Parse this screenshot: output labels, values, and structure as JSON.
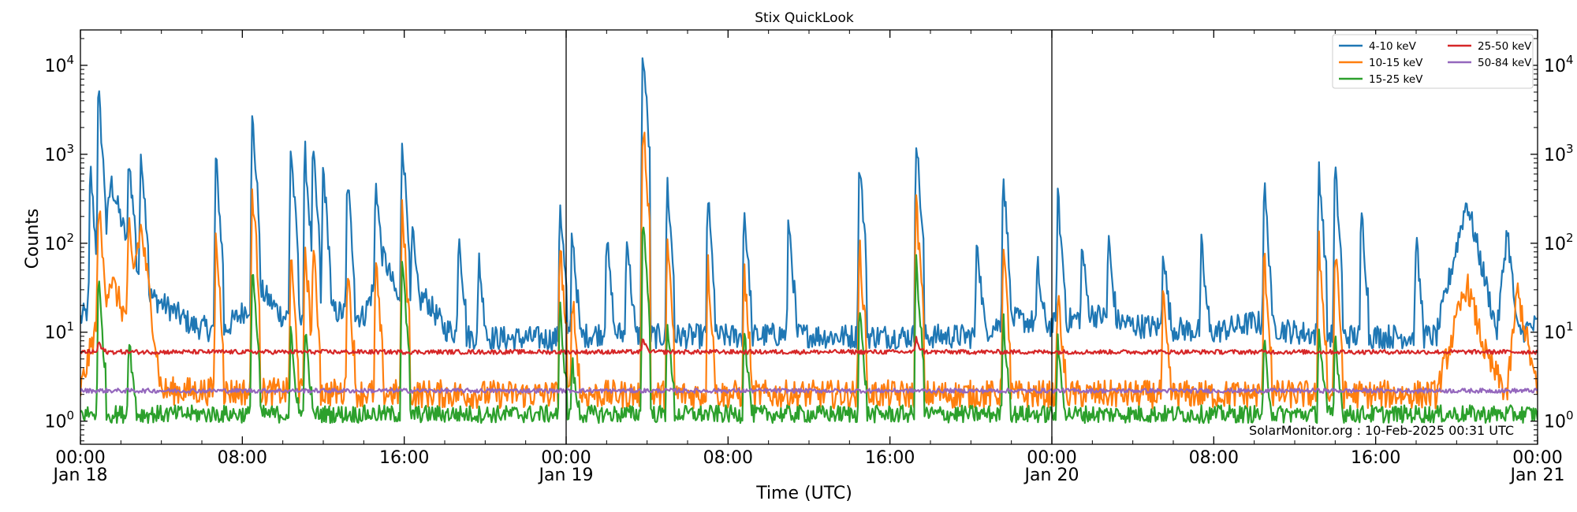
{
  "chart_data": {
    "type": "line",
    "title": "Stix QuickLook",
    "xlabel": "Time (UTC)",
    "ylabel": "Counts",
    "yscale": "log",
    "ylim": [
      0.55,
      25000
    ],
    "xlim_hours": [
      0,
      72
    ],
    "y_ticks": [
      {
        "value": 1,
        "exp": "0"
      },
      {
        "value": 10,
        "exp": "1"
      },
      {
        "value": 100,
        "exp": "2"
      },
      {
        "value": 1000,
        "exp": "3"
      },
      {
        "value": 10000,
        "exp": "4"
      }
    ],
    "x_ticks": [
      {
        "hour": 0,
        "time": "00:00",
        "date": "Jan 18"
      },
      {
        "hour": 8,
        "time": "08:00",
        "date": ""
      },
      {
        "hour": 16,
        "time": "16:00",
        "date": ""
      },
      {
        "hour": 24,
        "time": "00:00",
        "date": "Jan 19"
      },
      {
        "hour": 32,
        "time": "08:00",
        "date": ""
      },
      {
        "hour": 40,
        "time": "16:00",
        "date": ""
      },
      {
        "hour": 48,
        "time": "00:00",
        "date": "Jan 20"
      },
      {
        "hour": 56,
        "time": "08:00",
        "date": ""
      },
      {
        "hour": 64,
        "time": "16:00",
        "date": ""
      },
      {
        "hour": 72,
        "time": "00:00",
        "date": "Jan 21"
      }
    ],
    "day_boundaries_hours": [
      24,
      48
    ],
    "annotation": "SolarMonitor.org : 10-Feb-2025 00:31 UTC",
    "grid": false,
    "legend_position": "top-right",
    "legend_columns": 2,
    "series": [
      {
        "name": "4-10 keV",
        "color": "#1f77b4",
        "baseline_hours": [
          0,
          1,
          1.5,
          2.5,
          3.5,
          4.5,
          5.5,
          7,
          9,
          10,
          12,
          14,
          15,
          16,
          17,
          18,
          19,
          21,
          23,
          24,
          26,
          28,
          31,
          33,
          35,
          37,
          40,
          42,
          44,
          46,
          48,
          50,
          52,
          54,
          56,
          58,
          60,
          62,
          64,
          66,
          67,
          68.5,
          70,
          70.5,
          71,
          72
        ],
        "baseline_values": [
          14,
          25,
          500,
          70,
          25,
          18,
          12,
          10,
          28,
          15,
          18,
          15,
          70,
          14,
          25,
          11,
          9,
          8.5,
          8.5,
          8.5,
          10,
          9,
          9,
          9,
          9.5,
          9,
          9,
          9,
          9,
          14,
          12,
          16,
          12,
          11,
          10,
          13,
          10,
          9,
          9,
          9,
          9,
          300,
          10,
          150,
          10,
          12
        ],
        "peaks_hours": [
          0.5,
          0.9,
          2.4,
          3.0,
          6.7,
          8.5,
          10.4,
          11.1,
          11.5,
          12.0,
          13.2,
          14.6,
          15.9,
          16.4,
          18.7,
          19.7,
          23.7,
          24.3,
          26.0,
          27.0,
          27.8,
          29.0,
          31.0,
          32.8,
          35.0,
          38.5,
          41.3,
          44.3,
          45.6,
          47.3,
          48.3,
          49.5,
          50.8,
          53.5,
          55.4,
          58.5,
          61.2,
          62.0,
          63.3,
          66.0
        ],
        "peaks_values": [
          700,
          5000,
          1000,
          1200,
          900,
          2600,
          1200,
          1100,
          1100,
          750,
          550,
          550,
          1600,
          150,
          150,
          70,
          300,
          150,
          130,
          140,
          15000,
          500,
          350,
          250,
          200,
          900,
          1600,
          130,
          600,
          60,
          350,
          100,
          120,
          100,
          100,
          450,
          750,
          700,
          250,
          120
        ]
      },
      {
        "name": "10-15 keV",
        "color": "#ff7f0e",
        "baseline_hours": [
          0,
          0.8,
          1.5,
          2.2,
          3.0,
          4.0,
          20,
          24,
          44,
          48,
          56,
          64,
          67,
          68.5,
          69.5,
          70.5,
          71,
          72
        ],
        "baseline_values": [
          2.2,
          12,
          40,
          15,
          150,
          2.2,
          2.0,
          2.0,
          2.0,
          2.0,
          2.0,
          2.0,
          2.0,
          35,
          5,
          2.0,
          30,
          2.0
        ],
        "peaks_hours": [
          0.9,
          2.4,
          6.7,
          8.5,
          10.4,
          11.1,
          11.5,
          13.2,
          14.6,
          15.9,
          23.7,
          24.3,
          27.8,
          29.0,
          31.0,
          32.8,
          38.5,
          41.3,
          45.6,
          48.3,
          53.5,
          58.5,
          61.2,
          62.0
        ],
        "peaks_values": [
          300,
          150,
          120,
          420,
          70,
          100,
          90,
          60,
          60,
          230,
          100,
          30,
          2500,
          100,
          60,
          50,
          100,
          280,
          90,
          30,
          25,
          70,
          100,
          90
        ]
      },
      {
        "name": "15-25 keV",
        "color": "#2ca02c",
        "baseline_hours": [
          0,
          24,
          48,
          72
        ],
        "baseline_values": [
          1.2,
          1.2,
          1.2,
          1.2
        ],
        "peaks_hours": [
          0.9,
          2.4,
          8.5,
          10.4,
          11.1,
          15.9,
          23.7,
          24.3,
          27.8,
          29.0,
          32.8,
          38.5,
          41.3,
          45.6,
          48.3,
          58.5,
          61.2,
          62.0
        ],
        "peaks_values": [
          40,
          10,
          60,
          10,
          12,
          70,
          20,
          5,
          200,
          15,
          12,
          20,
          65,
          15,
          8,
          8,
          12,
          10
        ]
      },
      {
        "name": "25-50 keV",
        "color": "#d62728",
        "baseline_hours": [
          0,
          72
        ],
        "baseline_values": [
          6.0,
          6.0
        ],
        "peaks_hours": [
          0.9,
          27.8,
          41.3
        ],
        "peaks_values": [
          8,
          9,
          9
        ]
      },
      {
        "name": "50-84 keV",
        "color": "#9467bd",
        "baseline_hours": [
          0,
          72
        ],
        "baseline_values": [
          2.2,
          2.2
        ],
        "peaks_hours": [],
        "peaks_values": []
      }
    ]
  }
}
